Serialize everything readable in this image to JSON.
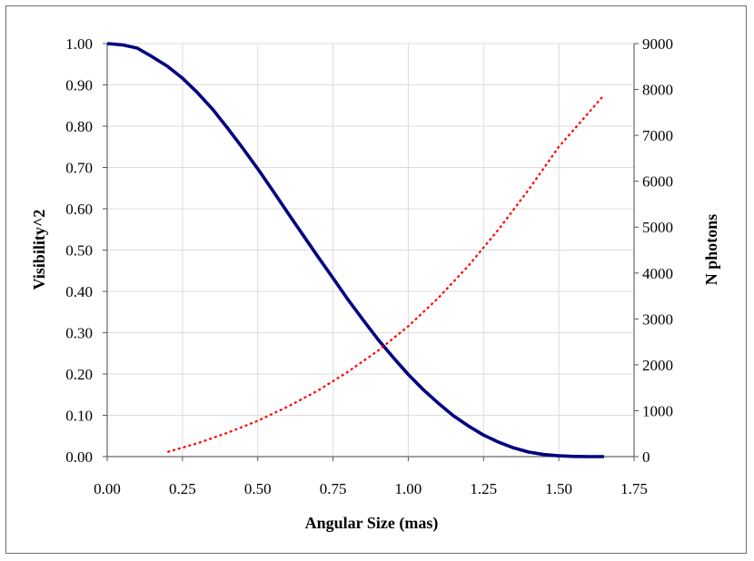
{
  "chart_data": {
    "type": "line",
    "title": "",
    "xlabel": "Angular Size (mas)",
    "ylabel": "Visibility^2",
    "y2label": "N photons",
    "xlim": [
      0,
      1.75
    ],
    "ylim": [
      0,
      1.0
    ],
    "y2lim": [
      0,
      9000
    ],
    "grid": true,
    "x_ticks": [
      "0.00",
      "0.25",
      "0.50",
      "0.75",
      "1.00",
      "1.25",
      "1.50",
      "1.75"
    ],
    "y_ticks": [
      "0.00",
      "0.10",
      "0.20",
      "0.30",
      "0.40",
      "0.50",
      "0.60",
      "0.70",
      "0.80",
      "0.90",
      "1.00"
    ],
    "y2_ticks": [
      "0",
      "1000",
      "2000",
      "3000",
      "4000",
      "5000",
      "6000",
      "7000",
      "8000",
      "9000"
    ],
    "series": [
      {
        "name": "Visibility^2",
        "axis": "left",
        "color": "#000080",
        "style": "solid",
        "x": [
          0.0,
          0.05,
          0.1,
          0.15,
          0.2,
          0.25,
          0.3,
          0.35,
          0.4,
          0.45,
          0.5,
          0.55,
          0.6,
          0.65,
          0.7,
          0.75,
          0.8,
          0.85,
          0.9,
          0.95,
          1.0,
          1.05,
          1.1,
          1.15,
          1.2,
          1.25,
          1.3,
          1.35,
          1.4,
          1.45,
          1.5,
          1.55,
          1.6,
          1.65
        ],
        "values": [
          1.0,
          0.997,
          0.989,
          0.968,
          0.945,
          0.916,
          0.881,
          0.841,
          0.795,
          0.747,
          0.697,
          0.644,
          0.59,
          0.537,
          0.484,
          0.432,
          0.38,
          0.331,
          0.283,
          0.24,
          0.199,
          0.162,
          0.129,
          0.099,
          0.074,
          0.052,
          0.035,
          0.021,
          0.011,
          0.005,
          0.002,
          0.0005,
          0.0001,
          0.0
        ]
      },
      {
        "name": "N photons",
        "axis": "right",
        "color": "#ff0000",
        "style": "dotted",
        "x": [
          0.2,
          0.3,
          0.4,
          0.5,
          0.6,
          0.7,
          0.8,
          0.9,
          1.0,
          1.1,
          1.2,
          1.3,
          1.4,
          1.5,
          1.6,
          1.65
        ],
        "values": [
          100,
          290,
          520,
          780,
          1090,
          1440,
          1850,
          2310,
          2840,
          3460,
          4160,
          4950,
          5820,
          6750,
          7500,
          7880
        ]
      }
    ]
  }
}
